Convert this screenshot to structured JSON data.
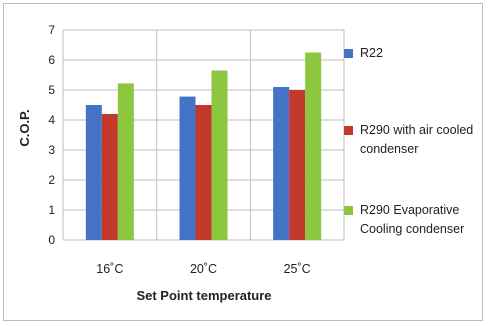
{
  "chart_data": {
    "type": "bar",
    "categories": [
      "16˚C",
      "20˚C",
      "25˚C"
    ],
    "series": [
      {
        "name": "R22",
        "values": [
          4.5,
          4.78,
          5.1
        ],
        "color": "#4472c4"
      },
      {
        "name": "R290 with air cooled\ncondenser",
        "values": [
          4.2,
          4.5,
          5.0
        ],
        "color": "#c0392b"
      },
      {
        "name": "R290 Evaporative\nCooling condenser",
        "values": [
          5.22,
          5.65,
          6.25
        ],
        "color": "#8dc63f"
      }
    ],
    "title": "",
    "xlabel": "Set Point temperature",
    "ylabel": "C.O.P.",
    "ylim": [
      0,
      7
    ],
    "yticks": [
      "0",
      "1",
      "2",
      "3",
      "4",
      "5",
      "6",
      "7"
    ],
    "grid": true,
    "legend_position": "right"
  }
}
